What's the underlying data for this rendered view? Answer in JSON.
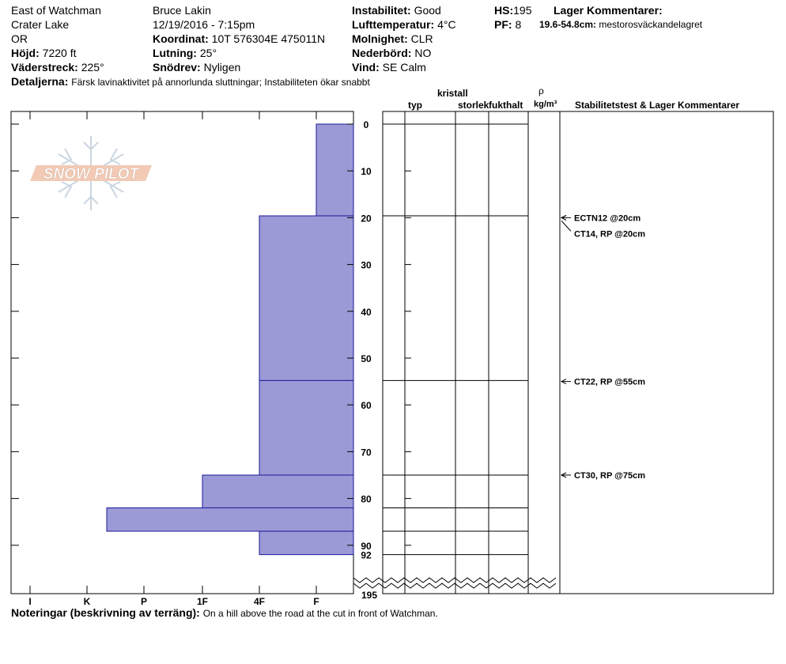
{
  "header": {
    "site": "East of Watchman",
    "area": "Crater Lake",
    "state": "OR",
    "elevation_label": "Höjd:",
    "elevation_value": "7220 ft",
    "aspect_label": "Väderstreck:",
    "aspect_value": "225°",
    "observer": "Bruce Lakin",
    "datetime": "12/19/2016 - 7:15pm",
    "coord_label": "Koordinat:",
    "coord_value": "10T 576304E 475011N",
    "slope_label": "Lutning:",
    "slope_value": "25°",
    "wind_loading_label": "Snödrev:",
    "wind_loading_value": "Nyligen",
    "stability_label": "Instabilitet:",
    "stability_value": "Good",
    "airtemp_label": "Lufttemperatur:",
    "airtemp_value": "4°C",
    "sky_label": "Molnighet:",
    "sky_value": "CLR",
    "precip_label": "Nederbörd:",
    "precip_value": "NO",
    "wind_label": "Vind:",
    "wind_value": "SE Calm",
    "hs_label": "HS:",
    "hs_value": "195",
    "pf_label": "PF:",
    "pf_value": "8",
    "layer_comments_title": "Lager Kommentarer:",
    "layer_comment_range": "19.6-54.8cm:",
    "layer_comment_text": "mestorosväckandelagret",
    "details_label": "Detaljerna:",
    "details_value": "Färsk lavinaktivitet på annorlunda sluttningar; Instabiliteten ökar snabbt"
  },
  "columns": {
    "crystal": "kristall",
    "type": "typ",
    "size": "storlek",
    "moisture": "fukthalt",
    "rho": "ρ",
    "density_unit": "kg/m³",
    "stability": "Stabilitetstest & Lager Kommentarer"
  },
  "logo_text": "SNOW PILOT",
  "footer": {
    "notes_label": "Noteringar (beskrivning av terräng):",
    "notes_value": "On a hill above the road at the cut in front of Watchman."
  },
  "colors": {
    "layer_fill": "#9c9ad6",
    "layer_stroke": "#1a1a9a"
  },
  "chart_data": {
    "type": "bar",
    "orientation": "horizontal",
    "x_axis": "hand hardness",
    "hardness_ticks": [
      "I",
      "K",
      "P",
      "1F",
      "4F",
      "F"
    ],
    "depth_axis_ticks": [
      0,
      10,
      20,
      30,
      40,
      50,
      60,
      70,
      80,
      90
    ],
    "depth_bottom_label": "92",
    "total_depth_label": "195",
    "layers": [
      {
        "top": 0,
        "bottom": 19.6,
        "hardness": "F"
      },
      {
        "top": 19.6,
        "bottom": 54.8,
        "hardness": "4F"
      },
      {
        "top": 54.8,
        "bottom": 75,
        "hardness": "4F"
      },
      {
        "top": 75,
        "bottom": 82,
        "hardness": "1F"
      },
      {
        "top": 82,
        "bottom": 87,
        "hardness": "K+"
      },
      {
        "top": 87,
        "bottom": 92,
        "hardness": "4F"
      }
    ],
    "stability_tests": [
      {
        "depth": 20,
        "label": "ECTN12 @20cm"
      },
      {
        "depth": 20,
        "label": "CT14, RP @20cm"
      },
      {
        "depth": 55,
        "label": "CT22, RP @55cm"
      },
      {
        "depth": 75,
        "label": "CT30, RP @75cm"
      }
    ]
  }
}
